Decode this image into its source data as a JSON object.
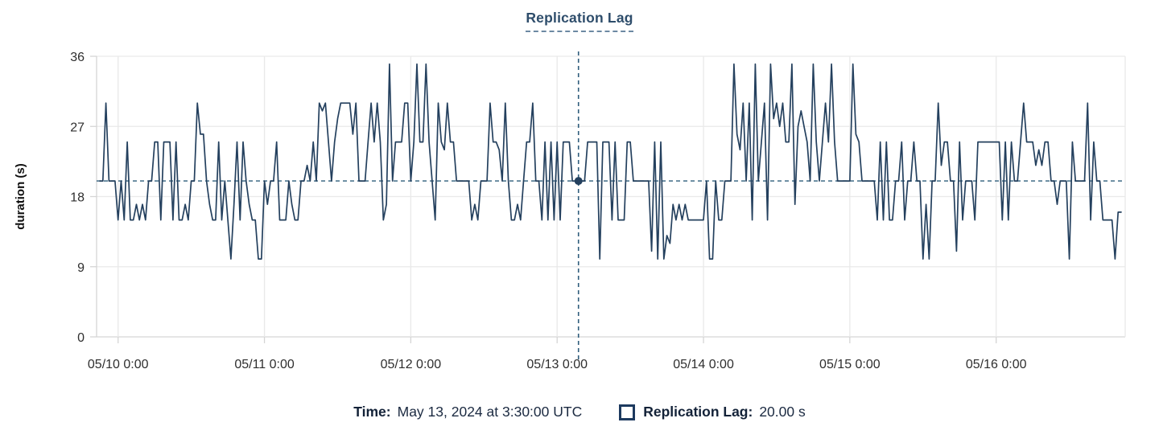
{
  "chart_data": {
    "type": "line",
    "title": "Replication Lag",
    "ylabel": "duration (s)",
    "ylim": [
      0,
      36
    ],
    "y_ticks": [
      0,
      9,
      18,
      27,
      36
    ],
    "x_unit": "30-minute samples",
    "x_start": "05/09 21:00",
    "x_end": "05/16 20:30",
    "x_tick_labels": [
      "05/10 0:00",
      "05/11 0:00",
      "05/12 0:00",
      "05/13 0:00",
      "05/14 0:00",
      "05/15 0:00",
      "05/16 0:00"
    ],
    "x_tick_indices": [
      6,
      54,
      102,
      150,
      198,
      246,
      294
    ],
    "grid": true,
    "legend_position": "top",
    "series": [
      {
        "name": "Replication Lag",
        "color": "#24405e",
        "values": [
          20,
          20,
          30,
          20,
          20,
          20,
          15,
          20,
          15,
          25,
          15,
          15,
          17,
          15,
          17,
          15,
          20,
          20,
          25,
          25,
          15,
          25,
          25,
          25,
          15,
          25,
          15,
          15,
          17,
          15,
          20,
          20,
          30,
          26,
          26,
          20,
          17,
          15,
          15,
          25,
          15,
          20,
          15,
          10,
          17,
          25,
          15,
          25,
          20,
          17,
          15,
          15,
          10,
          10,
          20,
          17,
          20,
          20,
          25,
          15,
          15,
          15,
          20,
          17,
          15,
          15,
          20,
          20,
          22,
          20,
          25,
          20,
          30,
          29,
          30,
          25,
          20,
          25,
          28,
          30,
          30,
          30,
          30,
          26,
          30,
          20,
          20,
          20,
          25,
          30,
          25,
          30,
          25,
          15,
          17,
          35,
          20,
          25,
          25,
          25,
          30,
          30,
          20,
          25,
          35,
          25,
          25,
          35,
          25,
          20,
          15,
          30,
          25,
          24,
          30,
          25,
          25,
          20,
          20,
          20,
          20,
          20,
          15,
          17,
          15,
          20,
          20,
          20,
          30,
          25,
          25,
          24,
          20,
          30,
          20,
          15,
          15,
          17,
          15,
          20,
          25,
          25,
          30,
          20,
          20,
          15,
          25,
          15,
          25,
          15,
          25,
          15,
          25,
          25,
          25,
          20,
          20,
          20,
          20,
          20,
          25,
          25,
          25,
          25,
          10,
          25,
          25,
          25,
          15,
          25,
          15,
          15,
          15,
          25,
          25,
          20,
          20,
          20,
          20,
          20,
          20,
          11,
          25,
          10,
          25,
          10,
          13,
          12,
          17,
          15,
          17,
          15,
          17,
          15,
          15,
          15,
          15,
          15,
          15,
          20,
          10,
          10,
          20,
          15,
          15,
          20,
          20,
          20,
          35,
          26,
          24,
          30,
          20,
          30,
          15,
          35,
          20,
          25,
          30,
          15,
          35,
          28,
          30,
          27,
          30,
          25,
          25,
          35,
          17,
          27,
          29,
          27,
          25,
          20,
          35,
          25,
          20,
          25,
          30,
          25,
          35,
          25,
          20,
          20,
          20,
          20,
          20,
          35,
          26,
          25,
          20,
          20,
          20,
          20,
          20,
          15,
          25,
          15,
          25,
          15,
          15,
          20,
          20,
          25,
          15,
          20,
          20,
          25,
          20,
          20,
          10,
          17,
          10,
          20,
          20,
          30,
          22,
          25,
          25,
          20,
          20,
          11,
          25,
          15,
          20,
          20,
          20,
          15,
          25,
          25,
          25,
          25,
          25,
          25,
          25,
          25,
          15,
          25,
          15,
          25,
          20,
          20,
          25,
          30,
          25,
          25,
          25,
          22,
          24,
          22,
          25,
          25,
          20,
          20,
          17,
          20,
          20,
          20,
          10,
          25,
          20,
          20,
          20,
          20,
          30,
          15,
          25,
          20,
          20,
          15,
          15,
          15,
          15,
          10,
          16,
          16
        ]
      }
    ],
    "crosshair": {
      "index": 157,
      "value": 20,
      "time": "May 13, 2024 at 3:30:00 UTC",
      "display_value": "20.00 s"
    }
  },
  "tooltip": {
    "time_label": "Time:",
    "time_value": "May 13, 2024 at 3:30:00 UTC",
    "series_label": "Replication Lag:",
    "series_value": "20.00 s"
  },
  "colors": {
    "series": "#24405e",
    "crosshair": "#2f5d7c",
    "dot": "#24405e",
    "grid": "#e9e9e9",
    "axis": "#d5d5d5",
    "tick_label": "#2e2e2e",
    "axis_title": "#111111",
    "title": "#2e4d6b"
  }
}
